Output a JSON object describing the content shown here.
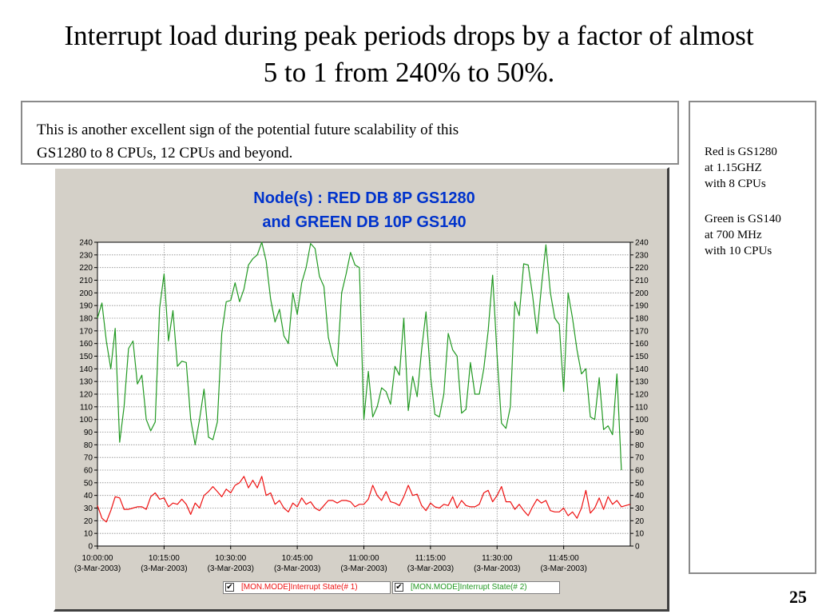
{
  "slide": {
    "title_line1": "Interrupt load during peak periods drops by a factor of almost",
    "title_line2": "5 to 1 from 240% to 50%.",
    "note_line1": "This is another excellent sign of the potential future scalability of this",
    "note_line2": "GS1280 to 8 CPUs, 12 CPUs and beyond.",
    "side_red_1": "Red is GS1280",
    "side_red_2": "at 1.15GHZ",
    "side_red_3": "with 8 CPUs",
    "side_green_1": "Green is GS140",
    "side_green_2": "at 700 MHz",
    "side_green_3": "with 10 CPUs",
    "page_number": "25"
  },
  "chart_data": {
    "type": "line",
    "title_line1": "Node(s) : RED DB 8P GS1280",
    "title_line2": "and GREEN DB 10P GS140",
    "title_color": "#0033cc",
    "ylim": [
      0,
      240
    ],
    "ytick_step": 10,
    "grid": true,
    "x_ticks": [
      {
        "time": "10:00:00",
        "date": "(3-Mar-2003)"
      },
      {
        "time": "10:15:00",
        "date": "(3-Mar-2003)"
      },
      {
        "time": "10:30:00",
        "date": "(3-Mar-2003)"
      },
      {
        "time": "10:45:00",
        "date": "(3-Mar-2003)"
      },
      {
        "time": "11:00:00",
        "date": "(3-Mar-2003)"
      },
      {
        "time": "11:15:00",
        "date": "(3-Mar-2003)"
      },
      {
        "time": "11:30:00",
        "date": "(3-Mar-2003)"
      },
      {
        "time": "11:45:00",
        "date": "(3-Mar-2003)"
      }
    ],
    "x_start": "10:00:00",
    "x_step_minutes": 1,
    "x_tick_every": 15,
    "x_max_index": 120,
    "legend_position": "bottom",
    "series": [
      {
        "name": "[MON.MODE]Interrupt State(# 1)",
        "color": "#ee1111",
        "values": [
          32,
          22,
          19,
          28,
          39,
          38,
          29,
          29,
          30,
          31,
          31,
          29,
          39,
          42,
          37,
          38,
          31,
          34,
          33,
          37,
          33,
          25,
          34,
          30,
          40,
          43,
          47,
          43,
          39,
          45,
          42,
          48,
          50,
          55,
          46,
          52,
          46,
          55,
          40,
          42,
          33,
          36,
          30,
          27,
          34,
          31,
          38,
          33,
          35,
          30,
          28,
          32,
          36,
          36,
          34,
          36,
          36,
          35,
          31,
          33,
          33,
          37,
          48,
          40,
          36,
          43,
          35,
          34,
          32,
          39,
          48,
          40,
          41,
          32,
          28,
          34,
          31,
          30,
          33,
          32,
          39,
          30,
          36,
          32,
          31,
          31,
          33,
          42,
          44,
          35,
          40,
          47,
          35,
          35,
          29,
          33,
          28,
          24,
          31,
          37,
          34,
          36,
          28,
          27,
          27,
          30,
          24,
          27,
          22,
          30,
          44,
          26,
          30,
          38,
          29,
          39,
          33,
          36,
          31,
          32,
          33
        ]
      },
      {
        "name": "[MON.MODE]Interrupt State(# 2)",
        "color": "#229922",
        "values": [
          180,
          192,
          162,
          140,
          172,
          82,
          110,
          156,
          162,
          128,
          135,
          100,
          91,
          98,
          188,
          215,
          162,
          186,
          142,
          146,
          145,
          100,
          80,
          100,
          124,
          86,
          84,
          98,
          168,
          193,
          194,
          208,
          193,
          203,
          222,
          227,
          230,
          240,
          225,
          195,
          177,
          187,
          166,
          160,
          200,
          183,
          208,
          220,
          239,
          235,
          213,
          205,
          165,
          150,
          142,
          200,
          215,
          232,
          222,
          220,
          100,
          138,
          102,
          110,
          125,
          122,
          112,
          142,
          135,
          180,
          107,
          134,
          118,
          155,
          185,
          135,
          104,
          102,
          120,
          168,
          155,
          150,
          105,
          108,
          145,
          120,
          120,
          140,
          170,
          214,
          150,
          97,
          93,
          110,
          193,
          182,
          223,
          222,
          198,
          168,
          205,
          238,
          200,
          180,
          175,
          122,
          200,
          180,
          155,
          136,
          140,
          102,
          100,
          133,
          92,
          95,
          88,
          136,
          60,
          null,
          null
        ]
      }
    ]
  }
}
